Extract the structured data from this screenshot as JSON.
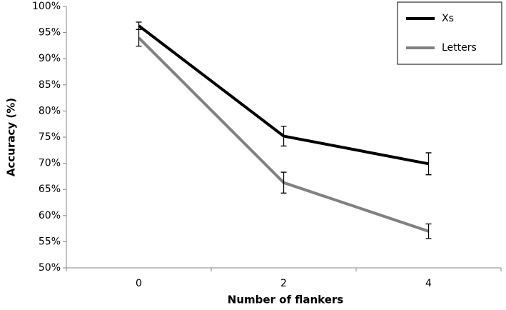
{
  "chart_data": {
    "type": "line",
    "x_label": "Number of flankers",
    "y_label": "Accuracy (%)",
    "categories": [
      "0",
      "2",
      "4"
    ],
    "series": [
      {
        "name": "Xs",
        "color": "#000000",
        "values": [
          96.3,
          75.2,
          69.9
        ],
        "errors": [
          0.7,
          1.9,
          2.1
        ]
      },
      {
        "name": "Letters",
        "color": "#808080",
        "values": [
          94.0,
          66.3,
          57.0
        ],
        "errors": [
          1.6,
          2.0,
          1.4
        ]
      }
    ],
    "ylim": [
      50,
      100
    ],
    "yticks": [
      {
        "value": 50,
        "label": "50%"
      },
      {
        "value": 55,
        "label": "55%"
      },
      {
        "value": 60,
        "label": "60%"
      },
      {
        "value": 65,
        "label": "65%"
      },
      {
        "value": 70,
        "label": "70%"
      },
      {
        "value": 75,
        "label": "75%"
      },
      {
        "value": 80,
        "label": "80%"
      },
      {
        "value": 85,
        "label": "85%"
      },
      {
        "value": 90,
        "label": "90%"
      },
      {
        "value": 95,
        "label": "95%"
      },
      {
        "value": 100,
        "label": "100%"
      }
    ],
    "legend": "top-right",
    "grid": false
  }
}
